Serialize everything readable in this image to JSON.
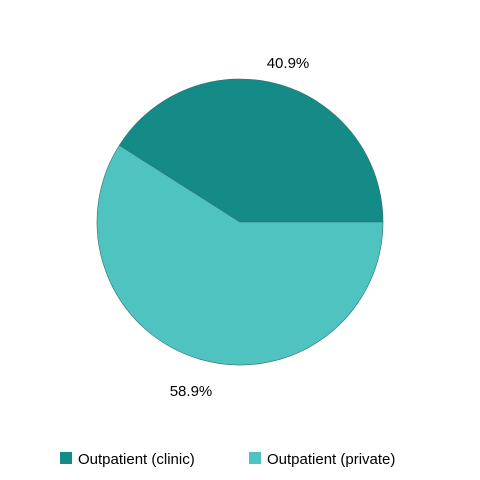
{
  "chart_data": {
    "type": "pie",
    "title": "",
    "start_angle_deg": 0,
    "direction": "counterclockwise",
    "legend_position": "bottom",
    "slices": [
      {
        "label": "Outpatient (clinic)",
        "value": 40.9,
        "value_label": "40.9%",
        "color": "#158B87"
      },
      {
        "label": "Outpatient (private)",
        "value": 58.9,
        "value_label": "58.9%",
        "color": "#4FC3BF"
      }
    ]
  }
}
